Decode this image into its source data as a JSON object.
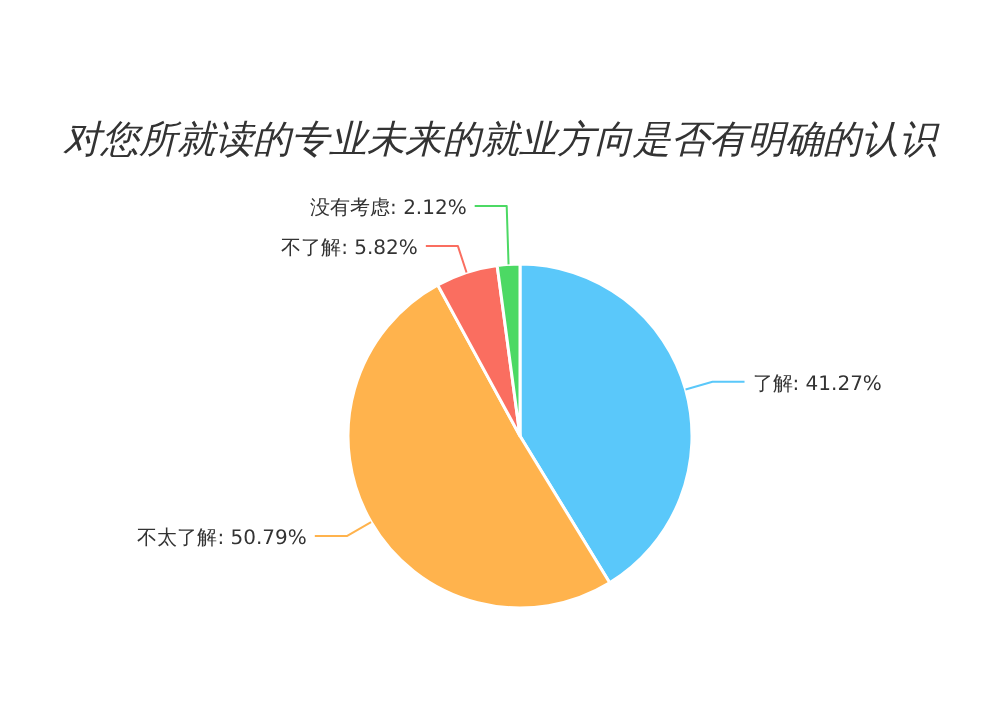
{
  "chart_data": {
    "type": "pie",
    "title": "对您所就读的专业未来的就业方向是否有明确的认识",
    "categories": [
      "了解",
      "不太了解",
      "不了解",
      "没有考虑"
    ],
    "values": [
      41.27,
      50.79,
      5.82,
      2.12
    ],
    "colors": [
      "#5ac8fa",
      "#ffb34d",
      "#fa6e60",
      "#4cd964"
    ],
    "value_labels": [
      ": 41.27%",
      ": 50.79%",
      ": 5.82%",
      ": 2.12%"
    ]
  }
}
